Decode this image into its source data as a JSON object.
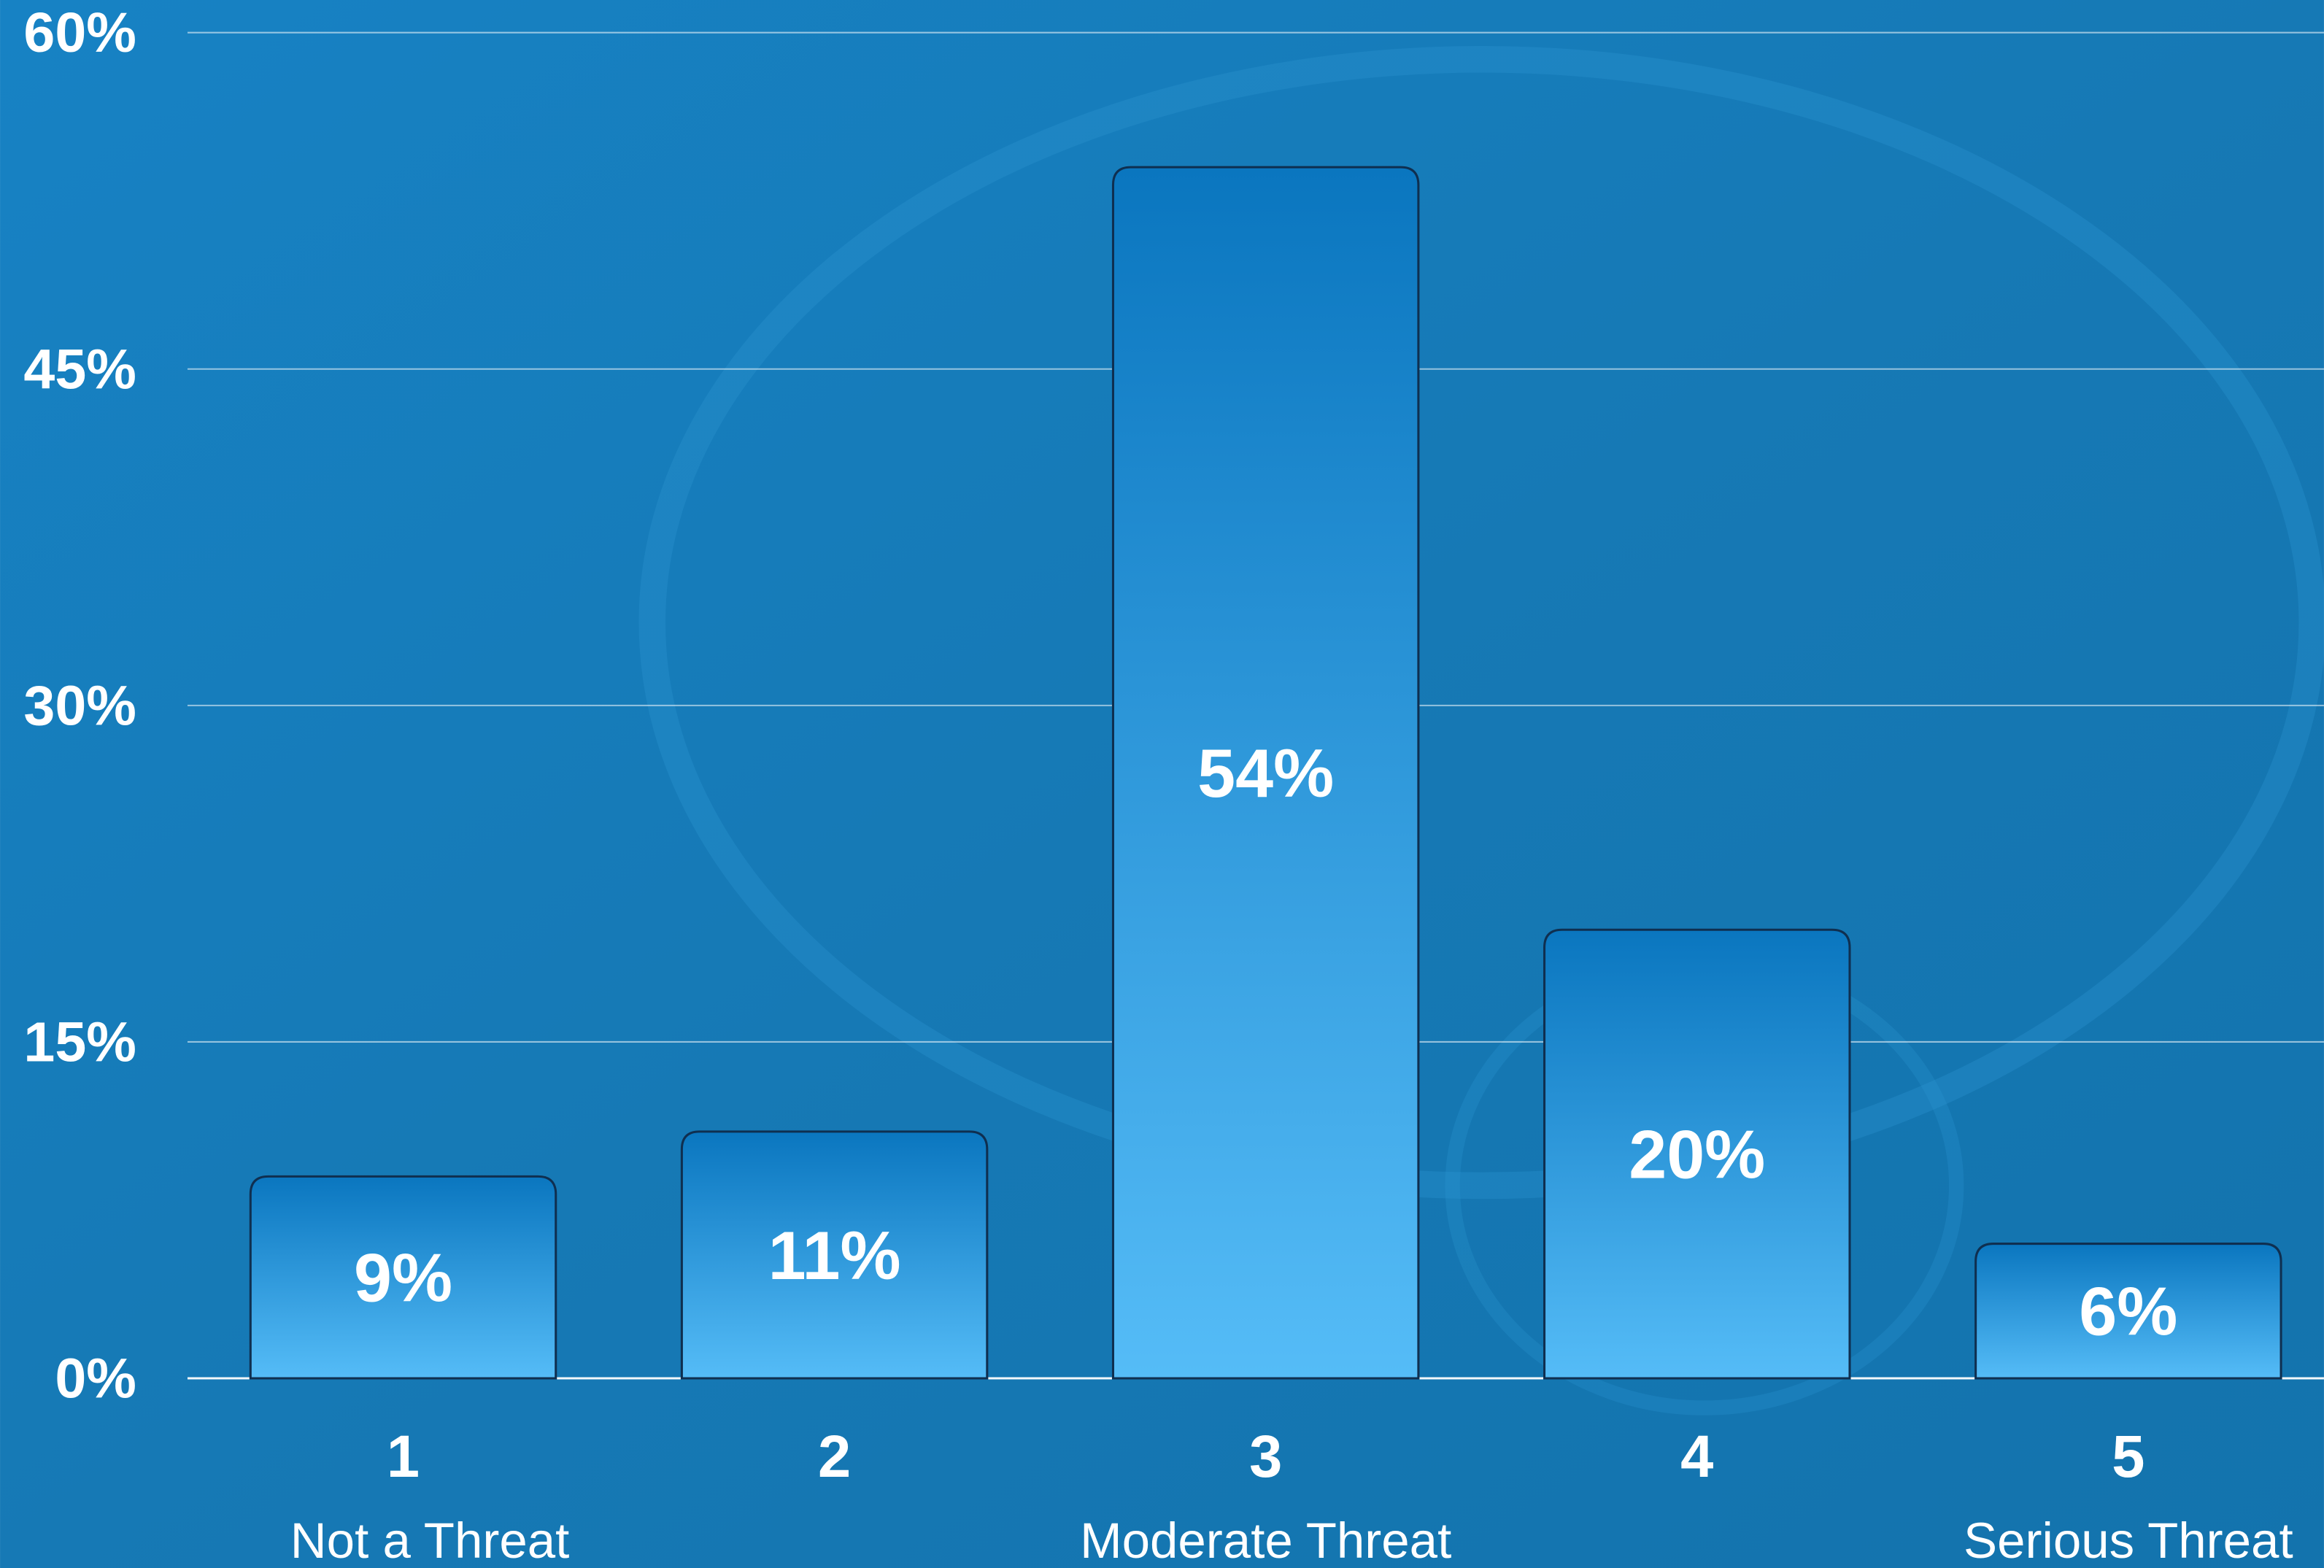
{
  "chart_data": {
    "type": "bar",
    "categories": [
      "1",
      "2",
      "3",
      "4",
      "5"
    ],
    "category_labels": [
      "Not a Threat",
      null,
      "Moderate Threat",
      null,
      "Serious Threat"
    ],
    "values": [
      9,
      11,
      54,
      20,
      6
    ],
    "value_labels": [
      "9%",
      "11%",
      "54%",
      "20%",
      "6%"
    ],
    "ylim": [
      0,
      60
    ],
    "yticks": [
      {
        "value": 0,
        "label": "0%"
      },
      {
        "value": 15,
        "label": "15%"
      },
      {
        "value": 30,
        "label": "30%"
      },
      {
        "value": 45,
        "label": "45%"
      },
      {
        "value": 60,
        "label": "60%"
      }
    ],
    "grid": true
  }
}
